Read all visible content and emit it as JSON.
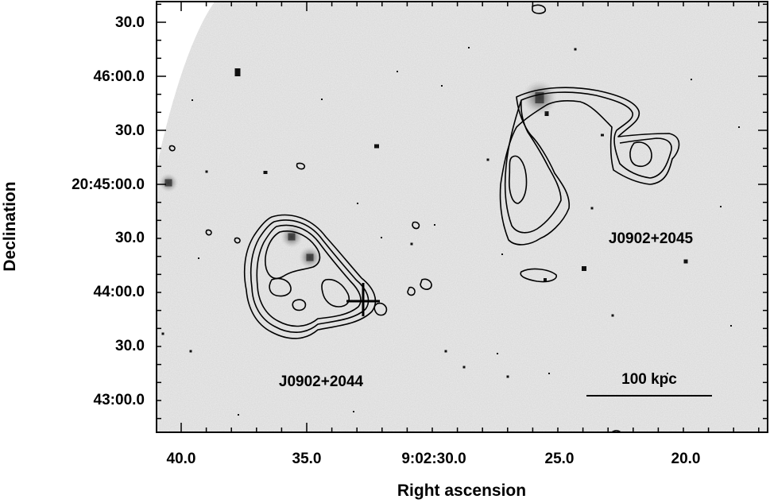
{
  "chart_data": {
    "type": "image",
    "xlabel": "Right ascension",
    "ylabel": "Declination",
    "x_ticks": [
      "40.0",
      "35.0",
      "9:02:30.0",
      "25.0",
      "20.0"
    ],
    "y_ticks": [
      "30.0",
      "46:00.0",
      "30.0",
      "20:45:00.0",
      "30.0",
      "44:00.0",
      "30.0",
      "43:00.0"
    ],
    "sources": [
      {
        "name": "J0902+2044"
      },
      {
        "name": "J0902+2045"
      }
    ],
    "scale_bar": {
      "label": "100 kpc",
      "length_kpc": 100
    },
    "colors": {
      "background_sky": "#ececec",
      "contours": "#000000"
    }
  }
}
